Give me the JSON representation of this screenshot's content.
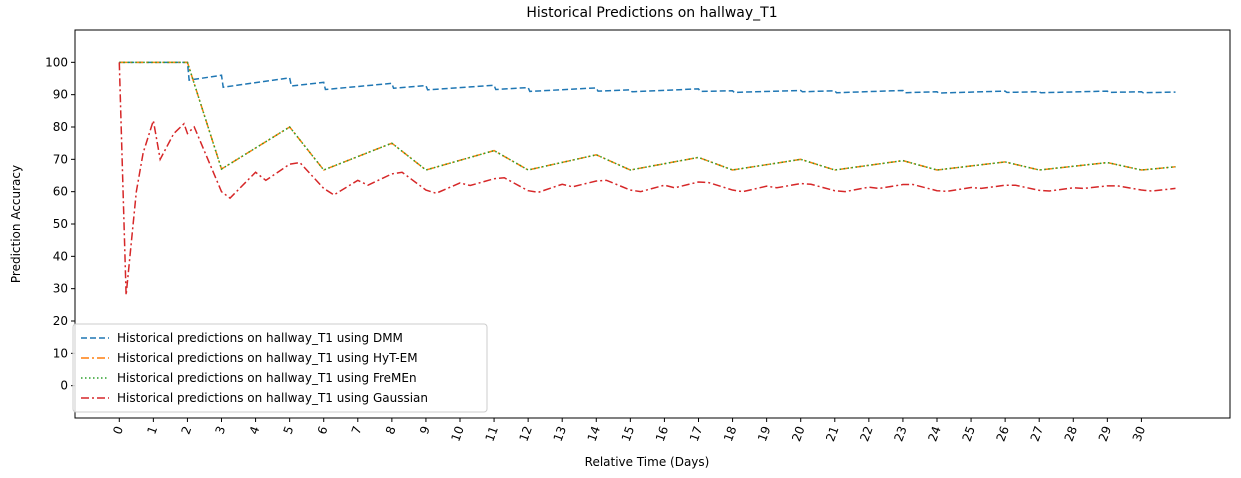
{
  "chart_data": {
    "type": "line",
    "title": "Historical Predictions on hallway_T1",
    "xlabel": "Relative Time (Days)",
    "ylabel": "Prediction Accuracy",
    "xlim": [
      -1.3,
      32.6
    ],
    "ylim": [
      -10,
      110
    ],
    "xticks": [
      0,
      1,
      2,
      3,
      4,
      5,
      6,
      7,
      8,
      9,
      10,
      11,
      12,
      13,
      14,
      15,
      16,
      17,
      18,
      19,
      20,
      21,
      22,
      23,
      24,
      25,
      26,
      27,
      28,
      29,
      30
    ],
    "yticks": [
      0,
      10,
      20,
      30,
      40,
      50,
      60,
      70,
      80,
      90,
      100
    ],
    "grid": false,
    "legend": "lower left",
    "series": [
      {
        "name": "Historical predictions on hallway_T1 using DMM",
        "color": "#1f77b4",
        "dash": "dashed",
        "x": [
          0,
          2,
          2.05,
          3,
          3.05,
          5,
          5.05,
          6,
          6.05,
          8,
          8.05,
          9,
          9.05,
          11,
          11.05,
          12,
          12.05,
          14,
          14.05,
          15,
          15.05,
          17,
          17.05,
          18,
          18.05,
          20,
          20.05,
          21,
          21.05,
          23,
          23.05,
          24,
          24.05,
          26,
          26.05,
          27,
          27.05,
          29,
          29.05,
          30,
          30.05,
          31
        ],
        "values": [
          100,
          100,
          94.5,
          96,
          92.3,
          95.2,
          92.7,
          93.8,
          91.6,
          93.5,
          92,
          92.8,
          91.5,
          92.9,
          91.6,
          92.2,
          91,
          92.1,
          91.1,
          91.5,
          90.9,
          91.8,
          91,
          91.2,
          90.7,
          91.3,
          90.9,
          91.2,
          90.6,
          91.3,
          90.6,
          90.9,
          90.5,
          91.1,
          90.7,
          90.9,
          90.6,
          91.1,
          90.7,
          90.9,
          90.6,
          90.8
        ]
      },
      {
        "name": "Historical predictions on hallway_T1 using HyT-EM",
        "color": "#ff7f0e",
        "dash": "dashdot",
        "x": [
          0,
          2,
          3,
          5,
          6,
          8,
          9,
          11,
          12,
          14,
          15,
          17,
          18,
          20,
          21,
          23,
          24,
          26,
          27,
          29,
          30,
          31
        ],
        "values": [
          100,
          100,
          67,
          80,
          66.7,
          75,
          66.7,
          72.7,
          66.7,
          71.4,
          66.7,
          70.6,
          66.7,
          70,
          66.7,
          69.6,
          66.7,
          69.2,
          66.7,
          69,
          66.7,
          67.7
        ]
      },
      {
        "name": "Historical predictions on hallway_T1 using FreMEn",
        "color": "#2ca02c",
        "dash": "dotted",
        "x": [
          0,
          2,
          3,
          5,
          6,
          8,
          9,
          11,
          12,
          14,
          15,
          17,
          18,
          20,
          21,
          23,
          24,
          26,
          27,
          29,
          30,
          31
        ],
        "values": [
          100,
          100,
          67,
          80,
          66.7,
          75,
          66.7,
          72.7,
          66.7,
          71.4,
          66.7,
          70.6,
          66.7,
          70,
          66.7,
          69.6,
          66.7,
          69.2,
          66.7,
          69,
          66.7,
          67.7
        ]
      },
      {
        "name": "Historical predictions on hallway_T1 using Gaussian",
        "color": "#d62728",
        "dash": "dashdot",
        "x": [
          0,
          0.2,
          0.5,
          0.7,
          1,
          1.2,
          1.6,
          1.9,
          2,
          2.2,
          3,
          3.25,
          4,
          4.3,
          5,
          5.3,
          6,
          6.3,
          7,
          7.3,
          8,
          8.3,
          9,
          9.3,
          10,
          10.3,
          11,
          11.3,
          12,
          12.3,
          13,
          13.3,
          14,
          14.3,
          15,
          15.3,
          16,
          16.3,
          17,
          17.3,
          18,
          18.3,
          19,
          19.3,
          20,
          20.3,
          21,
          21.3,
          22,
          22.3,
          23,
          23.3,
          24,
          24.3,
          25,
          25.3,
          26,
          26.3,
          27,
          27.3,
          28,
          28.3,
          29,
          29.3,
          30,
          30.3,
          31
        ],
        "values": [
          100,
          28,
          60,
          72,
          82,
          70,
          78,
          81,
          78,
          80,
          60,
          58,
          66,
          63.5,
          68.5,
          69,
          61,
          59,
          63.5,
          62,
          65.5,
          66,
          60.5,
          59.5,
          62.7,
          61.9,
          64,
          64.3,
          60.3,
          59.8,
          62.3,
          61.5,
          63.3,
          63.5,
          60.5,
          60,
          62,
          61.2,
          63,
          62.8,
          60.5,
          60,
          61.7,
          61.2,
          62.5,
          62.3,
          60.3,
          60,
          61.4,
          61,
          62.2,
          62.2,
          60.3,
          60.1,
          61.3,
          61,
          62,
          62,
          60.4,
          60.2,
          61.2,
          61,
          61.8,
          61.8,
          60.5,
          60.2,
          61
        ]
      }
    ]
  }
}
